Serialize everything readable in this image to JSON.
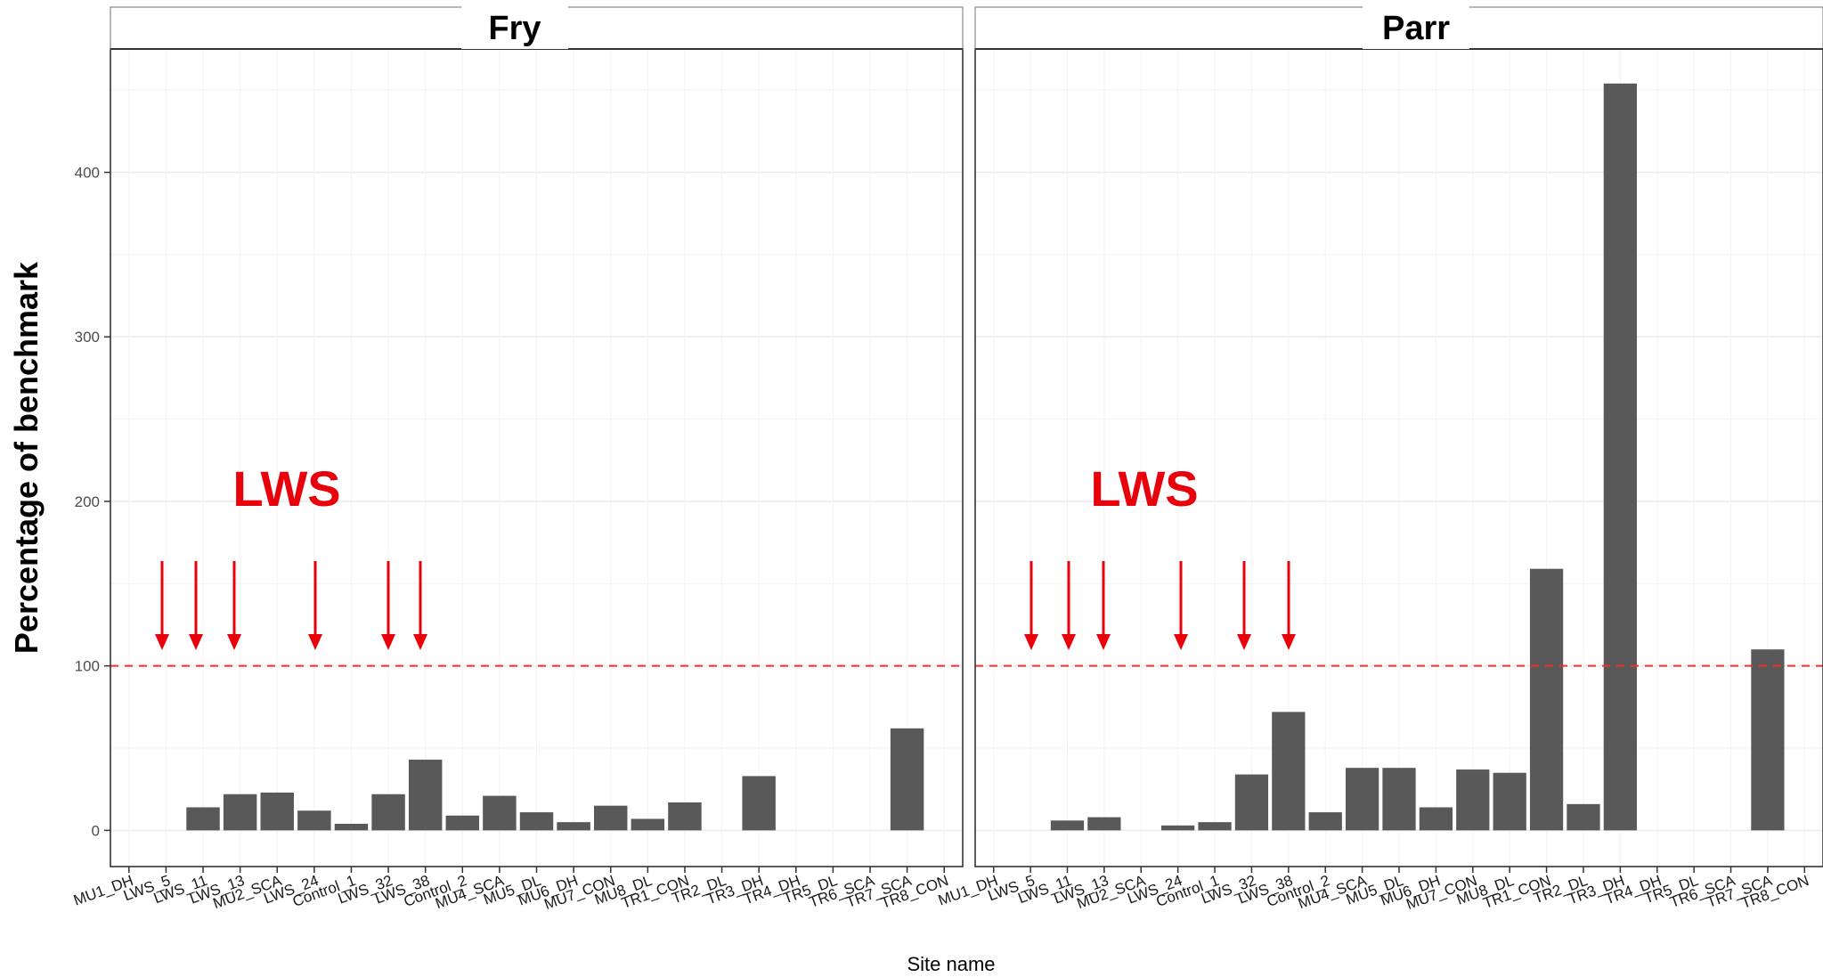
{
  "chart_data": {
    "type": "bar",
    "xlabel": "Site name",
    "ylabel": "Percentage of benchmark",
    "ylim": [
      -22,
      475
    ],
    "yticks": [
      0,
      100,
      200,
      300,
      400
    ],
    "grid": true,
    "bar_color": "#595959",
    "reference_line": {
      "y": 100,
      "color": "#ff2a2a",
      "style": "dashed"
    },
    "categories": [
      "MU1_DH",
      "LWS_5",
      "LWS_11",
      "LWS_13",
      "MU2_SCA",
      "LWS_24",
      "Control_1",
      "LWS_32",
      "LWS_38",
      "Control_2",
      "MU4_SCA",
      "MU5_DL",
      "MU6_DH",
      "MU7_CON",
      "MU8_DL",
      "TR1_CON",
      "TR2_DL",
      "TR3_DH",
      "TR4_DH",
      "TR5_DL",
      "TR6_SCA",
      "TR7_SCA",
      "TR8_CON"
    ],
    "panels": [
      {
        "title": "Fry",
        "values": [
          0,
          0,
          14,
          22,
          23,
          12,
          4,
          22,
          43,
          9,
          21,
          11,
          5,
          15,
          7,
          17,
          0,
          33,
          0,
          0,
          0,
          62,
          0
        ],
        "annotation": {
          "text": "LWS",
          "color": "#e8000b"
        },
        "arrows_at": [
          "LWS_5",
          "LWS_11",
          "LWS_13",
          "LWS_24",
          "LWS_32",
          "LWS_38"
        ]
      },
      {
        "title": "Parr",
        "values": [
          0,
          0,
          6,
          8,
          0,
          3,
          5,
          34,
          72,
          11,
          38,
          38,
          14,
          37,
          35,
          159,
          16,
          454,
          0,
          0,
          0,
          110,
          0
        ],
        "annotation": {
          "text": "LWS",
          "color": "#e8000b"
        },
        "arrows_at": [
          "LWS_5",
          "LWS_11",
          "LWS_13",
          "LWS_24",
          "LWS_32",
          "LWS_38"
        ]
      }
    ]
  }
}
